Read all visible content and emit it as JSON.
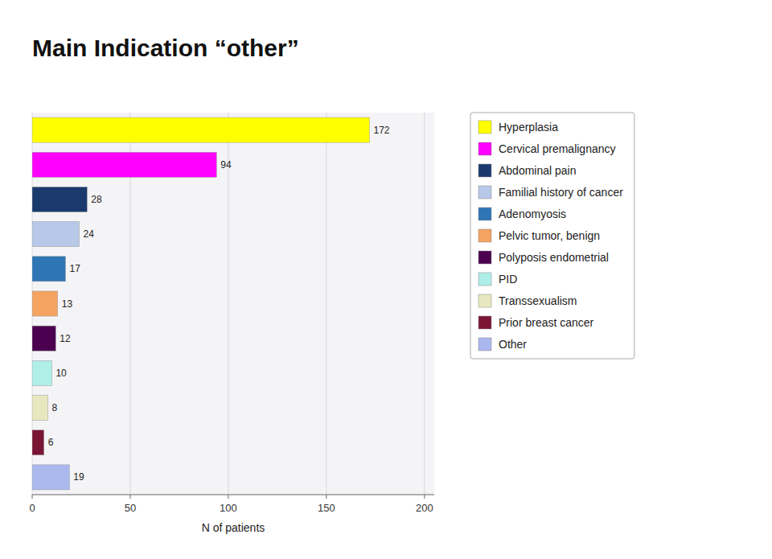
{
  "chart_data": {
    "type": "bar",
    "orientation": "horizontal",
    "title": "Main Indication “other”",
    "xlabel": "N of patients",
    "categories": [
      "Hyperplasia",
      "Cervical premalignancy",
      "Abdominal pain",
      "Familial history of cancer",
      "Adenomyosis",
      "Pelvic tumor, benign",
      "Polyposis endometrial",
      "PID",
      "Transsexualism",
      "Prior breast cancer",
      "Other"
    ],
    "values": [
      172,
      94,
      28,
      24,
      17,
      13,
      12,
      10,
      8,
      6,
      19
    ],
    "colors": [
      "#FFFF00",
      "#FF00FF",
      "#1A3A6E",
      "#B8C8E8",
      "#2E75B6",
      "#F4A460",
      "#4B0050",
      "#B0EEE8",
      "#E8E8C0",
      "#7B1535",
      "#AAB8EE"
    ],
    "xlim": [
      0,
      205
    ],
    "xticks": [
      0,
      50,
      100,
      150,
      200
    ],
    "grid": true,
    "data_labels": true,
    "legend": "right",
    "tick_labels": "x"
  }
}
